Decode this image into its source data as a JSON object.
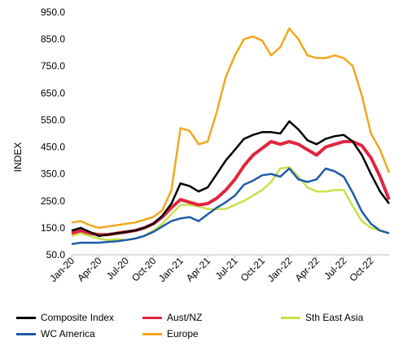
{
  "chart_data": {
    "type": "line",
    "ylabel": "INDEX",
    "ylim": [
      50,
      950
    ],
    "yticks": [
      "950.0",
      "850.0",
      "750.0",
      "650.0",
      "550.0",
      "450.0",
      "350.0",
      "250.0",
      "150.0",
      "50.0"
    ],
    "xtick_labels": [
      "Jan-20",
      "Apr-20",
      "Jul-20",
      "Oct-20",
      "Jan-21",
      "Apr-21",
      "Jul-21",
      "Oct-21",
      "Jan-22",
      "Apr-22",
      "Jul-22",
      "Oct-22"
    ],
    "x": [
      "2020-01",
      "2020-02",
      "2020-03",
      "2020-04",
      "2020-05",
      "2020-06",
      "2020-07",
      "2020-08",
      "2020-09",
      "2020-10",
      "2020-11",
      "2020-12",
      "2021-01",
      "2021-02",
      "2021-03",
      "2021-04",
      "2021-05",
      "2021-06",
      "2021-07",
      "2021-08",
      "2021-09",
      "2021-10",
      "2021-11",
      "2021-12",
      "2022-01",
      "2022-02",
      "2022-03",
      "2022-04",
      "2022-05",
      "2022-06",
      "2022-07",
      "2022-08",
      "2022-09",
      "2022-10",
      "2022-11",
      "2022-12"
    ],
    "series": [
      {
        "name": "Composite Index",
        "color": "#000000",
        "values": [
          140,
          150,
          135,
          120,
          125,
          130,
          135,
          140,
          150,
          165,
          195,
          240,
          315,
          305,
          285,
          300,
          350,
          400,
          440,
          480,
          495,
          505,
          505,
          500,
          545,
          515,
          475,
          460,
          480,
          490,
          495,
          470,
          420,
          350,
          285,
          240
        ]
      },
      {
        "name": "Aust/NZ",
        "color": "#e0263e",
        "values": [
          130,
          140,
          130,
          125,
          125,
          130,
          135,
          140,
          150,
          165,
          190,
          225,
          255,
          245,
          235,
          240,
          260,
          290,
          330,
          380,
          420,
          445,
          470,
          460,
          470,
          460,
          440,
          420,
          450,
          460,
          470,
          470,
          455,
          410,
          340,
          255
        ]
      },
      {
        "name": "Sth East Asia",
        "color": "#c8e04a",
        "values": [
          120,
          130,
          120,
          110,
          105,
          108,
          105,
          110,
          120,
          140,
          165,
          200,
          235,
          235,
          230,
          220,
          220,
          220,
          235,
          250,
          270,
          290,
          320,
          370,
          375,
          340,
          300,
          285,
          285,
          290,
          290,
          230,
          175,
          150,
          140,
          130
        ]
      },
      {
        "name": "WC America",
        "color": "#1e5aa8",
        "values": [
          90,
          95,
          95,
          95,
          98,
          100,
          105,
          110,
          120,
          135,
          155,
          175,
          185,
          190,
          175,
          200,
          225,
          245,
          270,
          310,
          325,
          345,
          350,
          340,
          370,
          330,
          320,
          330,
          370,
          360,
          340,
          280,
          210,
          165,
          140,
          130
        ]
      },
      {
        "name": "Europe",
        "color": "#f2a71b",
        "values": [
          170,
          175,
          160,
          150,
          155,
          160,
          165,
          170,
          180,
          190,
          215,
          290,
          520,
          510,
          460,
          470,
          580,
          710,
          790,
          850,
          860,
          845,
          790,
          820,
          890,
          850,
          790,
          780,
          780,
          790,
          780,
          750,
          640,
          500,
          440,
          355
        ]
      }
    ],
    "legend": {
      "position": "bottom"
    }
  }
}
